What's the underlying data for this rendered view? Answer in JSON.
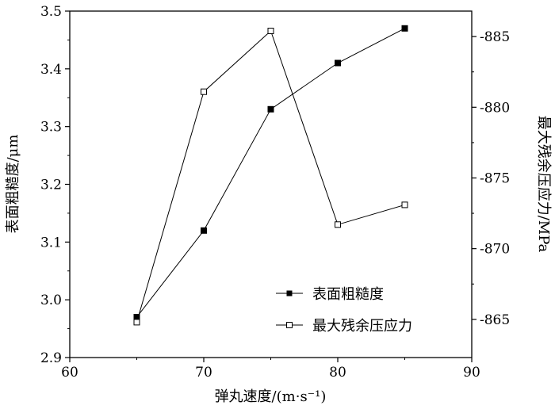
{
  "chart_data": {
    "type": "line",
    "xlabel": "弹丸速度/(m·s⁻¹)",
    "ylabel_left": "表面粗糙度/μm",
    "ylabel_right": "最大残余压应力/MPa",
    "x": [
      65,
      70,
      75,
      80,
      85
    ],
    "xlim": [
      60,
      90
    ],
    "xticks": [
      60,
      70,
      80,
      90
    ],
    "ylim_left": [
      2.9,
      3.5
    ],
    "yticks_left": [
      2.9,
      3.0,
      3.1,
      3.2,
      3.3,
      3.4,
      3.5
    ],
    "ylim_right": [
      -862.3,
      -886.8
    ],
    "yticks_right": [
      -865,
      -870,
      -875,
      -880,
      -885
    ],
    "grid": false,
    "legend_placement": "bottom-right",
    "series": [
      {
        "name": "表面粗糙度",
        "axis": "left",
        "marker": "filled-square",
        "values": [
          2.97,
          3.12,
          3.33,
          3.41,
          3.47
        ]
      },
      {
        "name": "最大残余压应力",
        "axis": "right",
        "marker": "open-square",
        "values": [
          -864.8,
          -881.1,
          -885.4,
          -871.7,
          -873.1
        ]
      }
    ]
  }
}
